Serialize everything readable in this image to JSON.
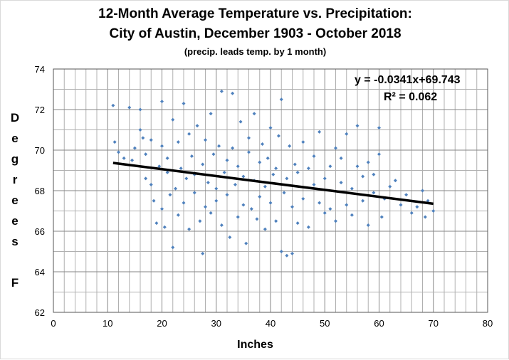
{
  "chart_data": {
    "type": "scatter",
    "title": "12-Month Average Temperature vs. Precipitation:",
    "subtitle": "City of Austin, December 1903 - October 2018",
    "note": "(precip. leads temp. by 1 month)",
    "xlabel": "Inches",
    "ylabel_letters": [
      "D",
      "e",
      "g",
      "r",
      "e",
      "e",
      "s",
      "",
      "F"
    ],
    "xlim": [
      0,
      80
    ],
    "ylim": [
      62,
      74
    ],
    "xticks": [
      0,
      10,
      20,
      30,
      40,
      50,
      60,
      70,
      80
    ],
    "yticks": [
      62,
      64,
      66,
      68,
      70,
      72,
      74
    ],
    "grid": true,
    "marker_color": "#4f81bd",
    "trendline": {
      "slope": -0.0341,
      "intercept": 69.743,
      "x_range": [
        11,
        70
      ],
      "color": "#000000",
      "equation": "y = -0.0341x+69.743",
      "r2": "R² = 0.062"
    },
    "points": [
      [
        11,
        72.2
      ],
      [
        11.3,
        70.4
      ],
      [
        12,
        69.9
      ],
      [
        13,
        69.6
      ],
      [
        14,
        72.1
      ],
      [
        14.5,
        69.5
      ],
      [
        15,
        70.1
      ],
      [
        16,
        72
      ],
      [
        16,
        71
      ],
      [
        16.5,
        70.6
      ],
      [
        17,
        68.6
      ],
      [
        17,
        69.8
      ],
      [
        18,
        70.5
      ],
      [
        18,
        68.3
      ],
      [
        18.5,
        67.5
      ],
      [
        19,
        66.4
      ],
      [
        19.5,
        69.2
      ],
      [
        20,
        72.4
      ],
      [
        20,
        70.2
      ],
      [
        20,
        67.1
      ],
      [
        20.5,
        66.2
      ],
      [
        21,
        68.9
      ],
      [
        21,
        69.6
      ],
      [
        21.5,
        67.8
      ],
      [
        22,
        65.2
      ],
      [
        22,
        71.5
      ],
      [
        22.5,
        68.1
      ],
      [
        23,
        70.4
      ],
      [
        23,
        66.8
      ],
      [
        23.5,
        69.1
      ],
      [
        24,
        72.3
      ],
      [
        24,
        67.4
      ],
      [
        24.5,
        68.6
      ],
      [
        25,
        70.8
      ],
      [
        25,
        66.1
      ],
      [
        25.5,
        69.7
      ],
      [
        26,
        67.9
      ],
      [
        26,
        68.8
      ],
      [
        26.5,
        71.2
      ],
      [
        27,
        66.5
      ],
      [
        27.5,
        64.9
      ],
      [
        27.5,
        69.3
      ],
      [
        28,
        70.5
      ],
      [
        28,
        67.2
      ],
      [
        28.5,
        68.4
      ],
      [
        29,
        71.8
      ],
      [
        29,
        66.9
      ],
      [
        29.5,
        69.8
      ],
      [
        30,
        68.1
      ],
      [
        30,
        67.5
      ],
      [
        30.5,
        70.2
      ],
      [
        31,
        72.9
      ],
      [
        31,
        66.3
      ],
      [
        31.5,
        68.9
      ],
      [
        32,
        69.5
      ],
      [
        32,
        67.8
      ],
      [
        32.5,
        65.7
      ],
      [
        33,
        72.8
      ],
      [
        33,
        70.1
      ],
      [
        33.5,
        68.3
      ],
      [
        34,
        66.7
      ],
      [
        34,
        69.2
      ],
      [
        34.5,
        71.4
      ],
      [
        35,
        67.3
      ],
      [
        35,
        68.7
      ],
      [
        35.5,
        65.4
      ],
      [
        36,
        70.6
      ],
      [
        36,
        69.9
      ],
      [
        36.5,
        67.1
      ],
      [
        37,
        68.5
      ],
      [
        37,
        71.8
      ],
      [
        37.5,
        66.6
      ],
      [
        38,
        69.4
      ],
      [
        38,
        67.7
      ],
      [
        38.5,
        70.3
      ],
      [
        39,
        68.2
      ],
      [
        39,
        66.1
      ],
      [
        39.5,
        69.6
      ],
      [
        40,
        71.1
      ],
      [
        40,
        67.4
      ],
      [
        40.5,
        68.8
      ],
      [
        41,
        66.5
      ],
      [
        41,
        69.1
      ],
      [
        41.5,
        70.7
      ],
      [
        42,
        72.5
      ],
      [
        42,
        65
      ],
      [
        42.5,
        67.9
      ],
      [
        43,
        64.8
      ],
      [
        43,
        68.6
      ],
      [
        43.5,
        70.2
      ],
      [
        44,
        64.9
      ],
      [
        44,
        67.2
      ],
      [
        44.5,
        69.3
      ],
      [
        45,
        66.4
      ],
      [
        45,
        68.9
      ],
      [
        46,
        70.4
      ],
      [
        46,
        67.6
      ],
      [
        47,
        69.1
      ],
      [
        47,
        66.2
      ],
      [
        48,
        68.3
      ],
      [
        48,
        69.7
      ],
      [
        49,
        67.4
      ],
      [
        49,
        70.9
      ],
      [
        50,
        66.9
      ],
      [
        50,
        68.6
      ],
      [
        51,
        69.2
      ],
      [
        51,
        67.1
      ],
      [
        52,
        70.1
      ],
      [
        52,
        66.5
      ],
      [
        53,
        68.4
      ],
      [
        53,
        69.6
      ],
      [
        54,
        67.3
      ],
      [
        54,
        70.8
      ],
      [
        55,
        68.1
      ],
      [
        55,
        66.8
      ],
      [
        56,
        71.2
      ],
      [
        56,
        69.2
      ],
      [
        57,
        67.5
      ],
      [
        57,
        68.7
      ],
      [
        58,
        69.4
      ],
      [
        58,
        66.3
      ],
      [
        59,
        67.9
      ],
      [
        59,
        68.8
      ],
      [
        60,
        71.1
      ],
      [
        60,
        69.8
      ],
      [
        60.5,
        66.7
      ],
      [
        61,
        67.6
      ],
      [
        62,
        68.2
      ],
      [
        63,
        68.5
      ],
      [
        64,
        67.3
      ],
      [
        65,
        67.8
      ],
      [
        66,
        66.9
      ],
      [
        67,
        67.2
      ],
      [
        68,
        68
      ],
      [
        68.5,
        66.7
      ],
      [
        69,
        67.5
      ],
      [
        70,
        67
      ]
    ]
  }
}
